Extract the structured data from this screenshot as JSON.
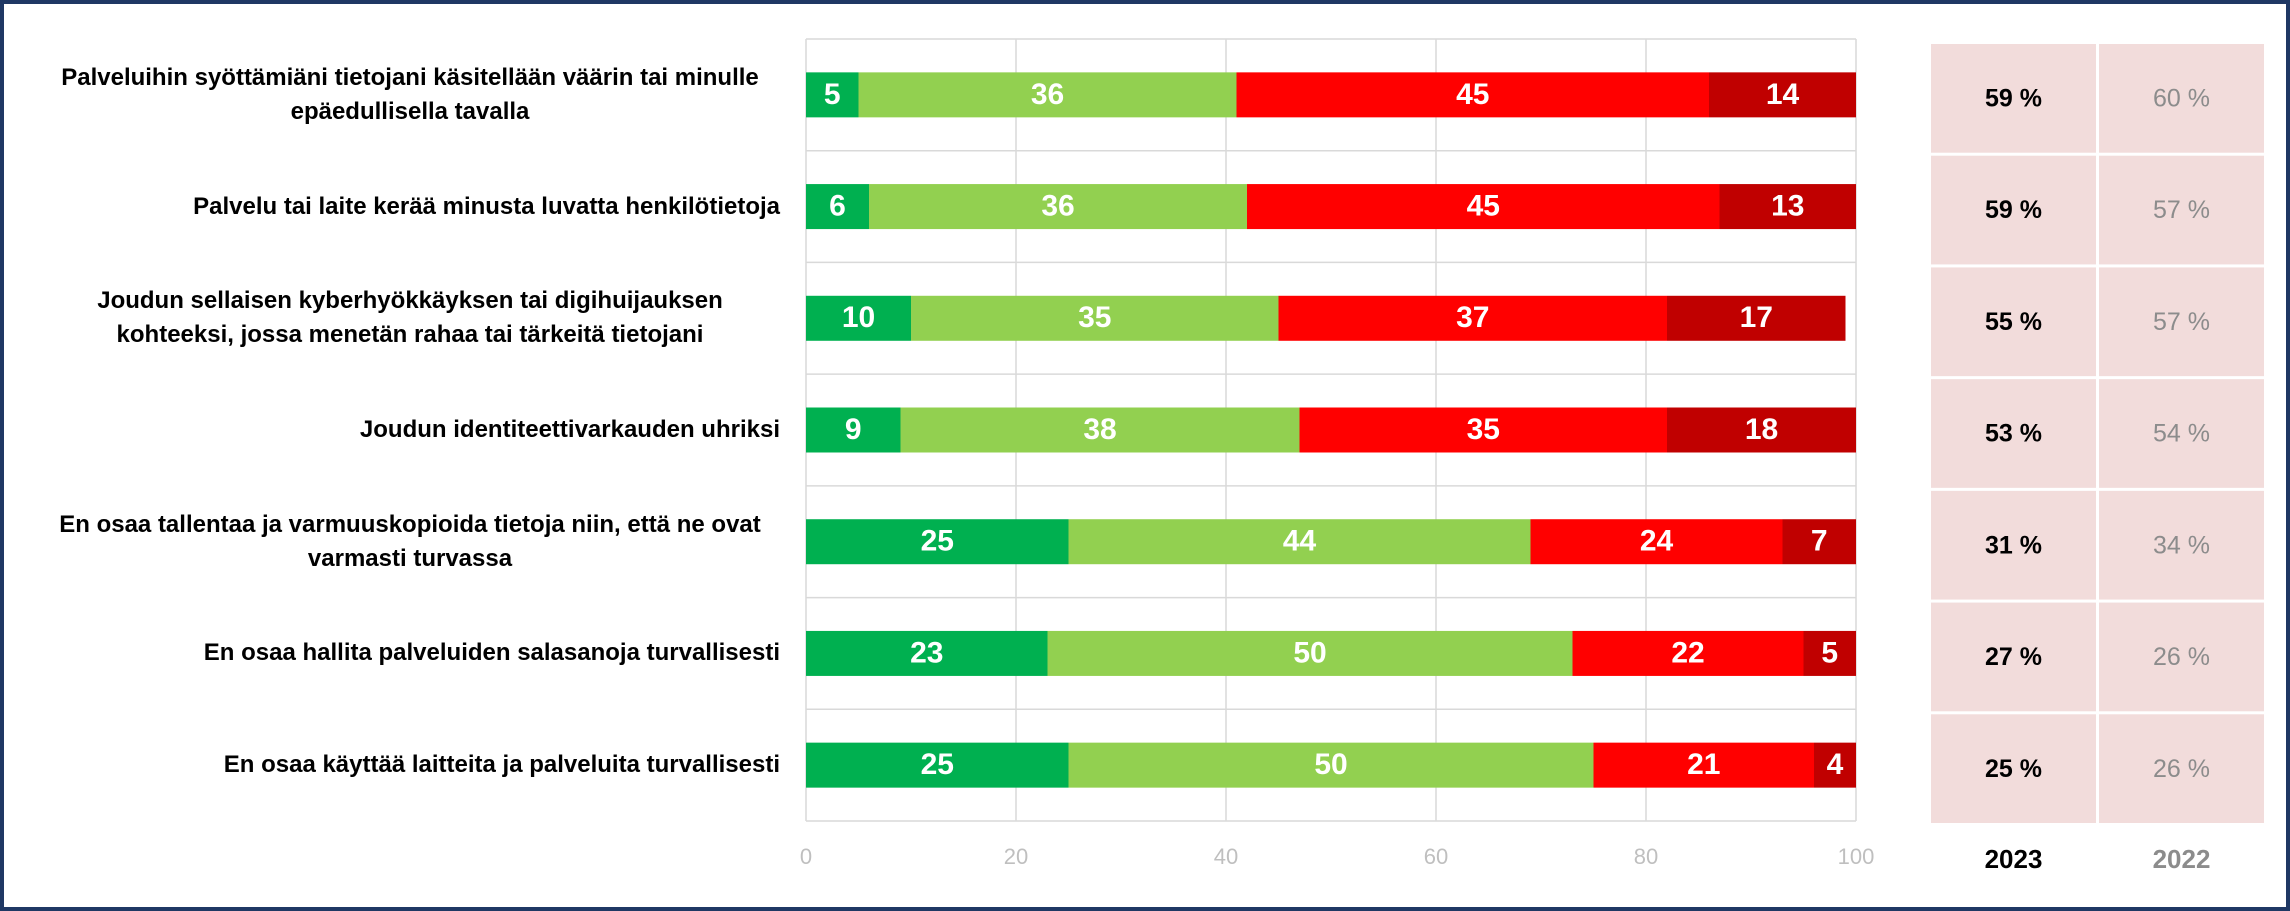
{
  "chart_data": {
    "type": "stacked-bar-horizontal",
    "categories": [
      "Palveluihin syöttämiäni tietojani käsitellään väärin tai minulle epäedullisella tavalla",
      "Palvelu tai laite kerää minusta luvatta henkilötietoja",
      "Joudun sellaisen kyberhyökkäyksen tai digihuijauksen kohteeksi, jossa menetän rahaa tai tärkeitä tietojani",
      "Joudun identiteettivarkauden uhriksi",
      "En osaa tallentaa ja varmuuskopioida tietoja niin, että ne ovat varmasti turvassa",
      "En osaa hallita palveluiden salasanoja turvallisesti",
      "En osaa käyttää laitteita ja palveluita turvallisesti"
    ],
    "series": [
      {
        "color": "#00b050",
        "values": [
          5,
          6,
          10,
          9,
          25,
          23,
          25
        ]
      },
      {
        "color": "#92d050",
        "values": [
          36,
          36,
          35,
          38,
          44,
          50,
          50
        ]
      },
      {
        "color": "#ff0000",
        "values": [
          45,
          45,
          37,
          35,
          24,
          22,
          21
        ]
      },
      {
        "color": "#c00000",
        "values": [
          14,
          13,
          17,
          18,
          7,
          5,
          4
        ]
      }
    ],
    "xlim": [
      0,
      100
    ],
    "xticks": [
      0,
      20,
      40,
      60,
      80,
      100
    ],
    "grid": true,
    "side_columns": [
      {
        "header": "2023",
        "values": [
          59,
          59,
          55,
          53,
          31,
          27,
          25
        ],
        "value_labels": [
          "59 %",
          "59 %",
          "55 %",
          "53 %",
          "31 %",
          "27 %",
          "25 %"
        ]
      },
      {
        "header": "2022",
        "values": [
          60,
          57,
          57,
          54,
          34,
          26,
          26
        ],
        "value_labels": [
          "60 %",
          "57 %",
          "57 %",
          "54 %",
          "34 %",
          "26 %",
          "26 %"
        ]
      }
    ]
  }
}
